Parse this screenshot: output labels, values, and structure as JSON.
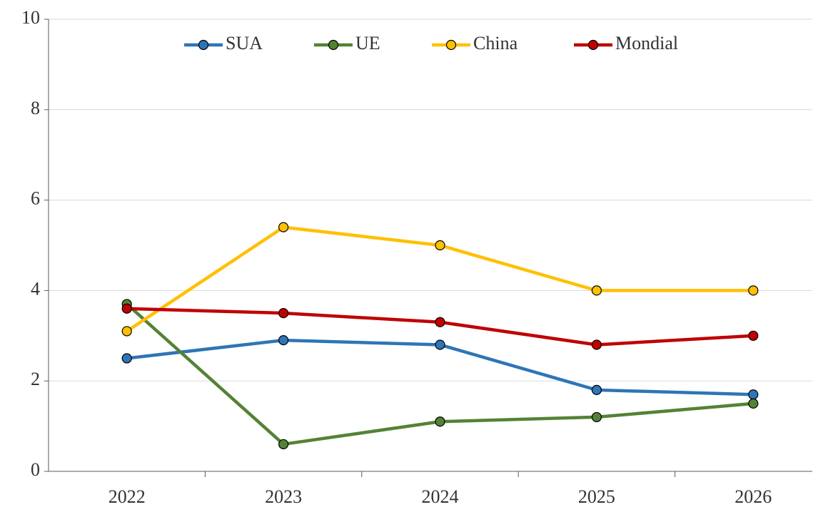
{
  "chart_data": {
    "type": "line",
    "categories": [
      "2022",
      "2023",
      "2024",
      "2025",
      "2026"
    ],
    "series": [
      {
        "name": "SUA",
        "color": "#2e75b6",
        "values": [
          2.5,
          2.9,
          2.8,
          1.8,
          1.7
        ]
      },
      {
        "name": "UE",
        "color": "#548235",
        "values": [
          3.7,
          0.6,
          1.1,
          1.2,
          1.5
        ]
      },
      {
        "name": "China",
        "color": "#ffc000",
        "values": [
          3.1,
          5.4,
          5.0,
          4.0,
          4.0
        ]
      },
      {
        "name": "Mondial",
        "color": "#c00000",
        "values": [
          3.6,
          3.5,
          3.3,
          2.8,
          3.0
        ]
      }
    ],
    "ylim": [
      0,
      10
    ],
    "yticks": [
      0,
      2,
      4,
      6,
      8,
      10
    ],
    "grid": true,
    "legend": "top"
  }
}
